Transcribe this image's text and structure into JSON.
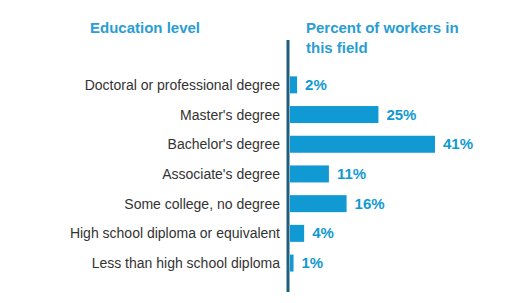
{
  "chart_data": {
    "type": "bar",
    "orientation": "horizontal",
    "y_label": "Education level",
    "x_label": "Percent of workers in this field",
    "categories": [
      "Doctoral or professional degree",
      "Master's degree",
      "Bachelor's degree",
      "Associate's degree",
      "Some college, no degree",
      "High school diploma or equivalent",
      "Less than high school diploma"
    ],
    "values": [
      2,
      25,
      41,
      11,
      16,
      4,
      1
    ],
    "value_labels": [
      "2%",
      "25%",
      "41%",
      "11%",
      "16%",
      "4%",
      "1%"
    ],
    "color": "#1199d3",
    "xlim": [
      0,
      41
    ],
    "data_labels": true,
    "grid": false,
    "tick_labels": "y"
  }
}
